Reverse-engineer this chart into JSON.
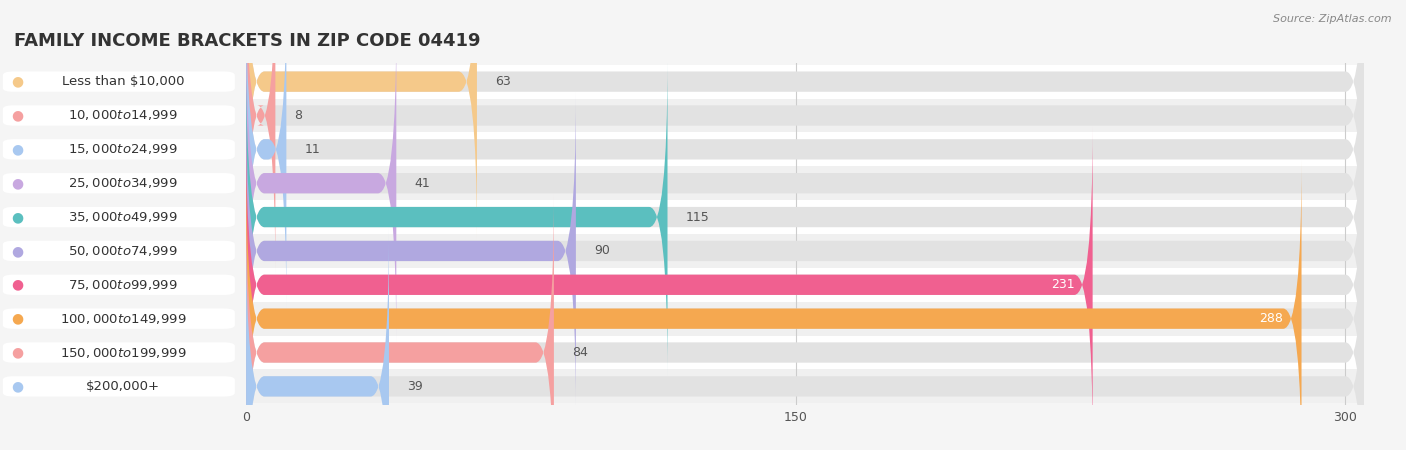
{
  "title": "FAMILY INCOME BRACKETS IN ZIP CODE 04419",
  "source": "Source: ZipAtlas.com",
  "categories": [
    "Less than $10,000",
    "$10,000 to $14,999",
    "$15,000 to $24,999",
    "$25,000 to $34,999",
    "$35,000 to $49,999",
    "$50,000 to $74,999",
    "$75,000 to $99,999",
    "$100,000 to $149,999",
    "$150,000 to $199,999",
    "$200,000+"
  ],
  "values": [
    63,
    8,
    11,
    41,
    115,
    90,
    231,
    288,
    84,
    39
  ],
  "colors": [
    "#F5C98A",
    "#F5A0A0",
    "#A8C8F0",
    "#C8A8E0",
    "#5BBFBF",
    "#B0A8E0",
    "#F06090",
    "#F5A850",
    "#F5A0A0",
    "#A8C8F0"
  ],
  "xlim": [
    0,
    305
  ],
  "xticks": [
    0,
    150,
    300
  ],
  "background_color": "#f5f5f5",
  "row_colors": [
    "#ffffff",
    "#f0f0f0"
  ],
  "bar_bg_color": "#e2e2e2",
  "title_fontsize": 13,
  "label_fontsize": 9.5,
  "value_fontsize": 9,
  "bar_height": 0.6,
  "value_label_color_inside": "#ffffff",
  "value_label_color_outside": "#555555",
  "inside_threshold": 200
}
